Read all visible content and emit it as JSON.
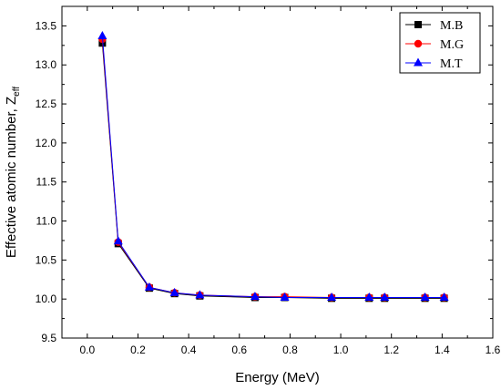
{
  "chart_data": {
    "type": "line",
    "title": "",
    "xlabel": "Energy (MeV)",
    "ylabel": "Effective atomic number, Z",
    "ylabel_subscript": "eff",
    "xlim": [
      -0.1,
      1.6
    ],
    "ylim": [
      9.5,
      13.75
    ],
    "x_ticks": [
      "0.0",
      "0.2",
      "0.4",
      "0.6",
      "0.8",
      "1.0",
      "1.2",
      "1.4",
      "1.6"
    ],
    "y_ticks": [
      "9.5",
      "10.0",
      "10.5",
      "11.0",
      "11.5",
      "12.0",
      "12.5",
      "13.0",
      "13.5"
    ],
    "grid": false,
    "legend_position": "top-right",
    "x": [
      0.0595,
      0.1221,
      0.2447,
      0.3443,
      0.444,
      0.6617,
      0.7789,
      0.9641,
      1.1122,
      1.1732,
      1.3325,
      1.4081
    ],
    "series": [
      {
        "name": "M.B",
        "color": "#000000",
        "marker": "square",
        "values": [
          13.28,
          10.71,
          10.14,
          10.07,
          10.04,
          10.02,
          10.02,
          10.01,
          10.01,
          10.01,
          10.01,
          10.01
        ]
      },
      {
        "name": "M.G",
        "color": "#ff0000",
        "marker": "circle",
        "values": [
          13.33,
          10.73,
          10.15,
          10.08,
          10.05,
          10.03,
          10.03,
          10.02,
          10.02,
          10.02,
          10.02,
          10.02
        ]
      },
      {
        "name": "M.T",
        "color": "#0000ff",
        "marker": "triangle",
        "values": [
          13.37,
          10.74,
          10.15,
          10.08,
          10.05,
          10.03,
          10.02,
          10.02,
          10.02,
          10.02,
          10.02,
          10.02
        ]
      }
    ]
  }
}
